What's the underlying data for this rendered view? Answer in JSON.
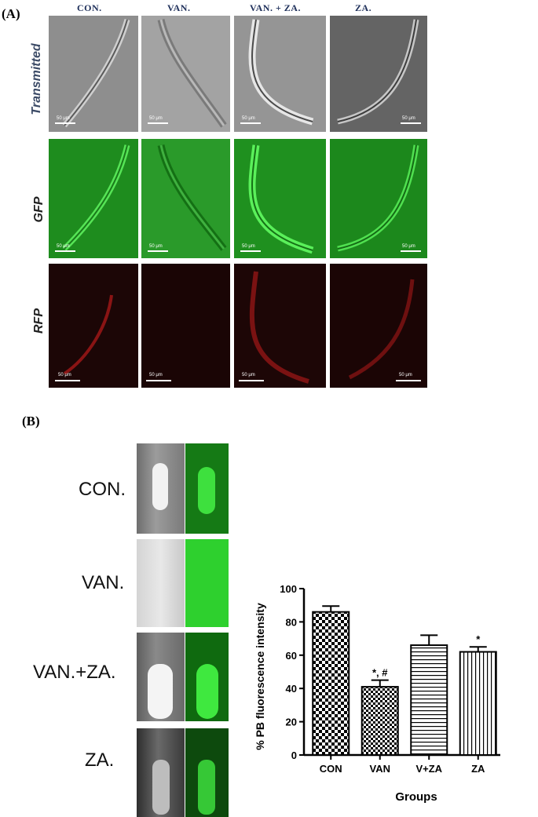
{
  "panel_a": {
    "label": "(A)",
    "columns": [
      "CON.",
      "VAN.",
      "VAN. + ZA.",
      "ZA."
    ],
    "rows": [
      "Transmitted",
      "GFP",
      "RFP"
    ],
    "scale_bar": "50 μm"
  },
  "panel_b": {
    "label": "(B)",
    "image_labels": [
      "CON.",
      "VAN.",
      "VAN.+ZA.",
      "ZA."
    ]
  },
  "chart_data": {
    "type": "bar",
    "categories": [
      "CON",
      "VAN",
      "V+ZA",
      "ZA"
    ],
    "values": [
      86,
      41,
      66,
      62
    ],
    "errors": [
      3.5,
      4,
      6,
      3
    ],
    "annotations": [
      "",
      "*, #",
      "",
      "*"
    ],
    "xlabel": "Groups",
    "ylabel": "% PB fluorescence intensity",
    "ylim": [
      0,
      100
    ],
    "yticks": [
      0,
      20,
      40,
      60,
      80,
      100
    ],
    "patterns": [
      "checker-large",
      "checker-small",
      "horizontal-lines",
      "vertical-lines"
    ],
    "grid": false,
    "legend": "none"
  }
}
